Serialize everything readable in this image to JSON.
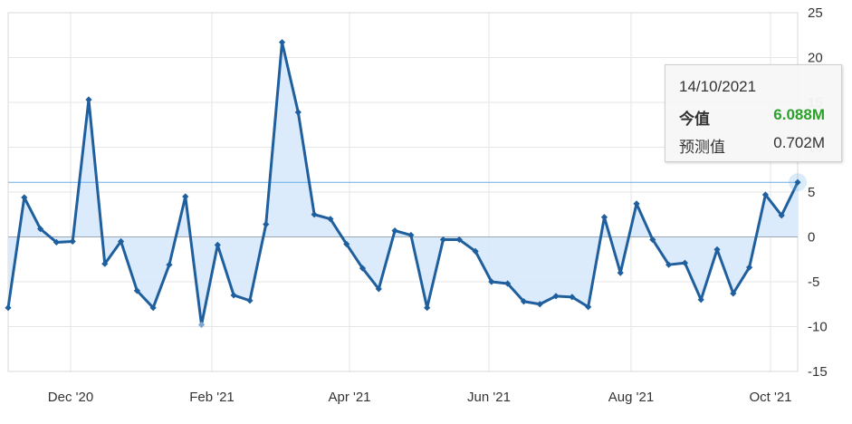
{
  "chart_data": {
    "type": "line",
    "y_axis": {
      "ticks": [
        25,
        20,
        15,
        10,
        5,
        0,
        -5,
        -10,
        -15
      ],
      "ylim": [
        -15,
        25
      ],
      "position": "right"
    },
    "x_axis": {
      "ticks": [
        "Dec '20",
        "Feb '21",
        "Apr '21",
        "Jun '21",
        "Aug '21",
        "Oct '21"
      ]
    },
    "reference_line": 6.088,
    "grid": true,
    "colors": {
      "line": "#1f5f9e",
      "fill": "#d7e9fb",
      "grid": "#e6e6e6",
      "zero": "#9aa7b3",
      "ref": "#6aaee8",
      "actual": "#2ca02c"
    },
    "series": [
      {
        "values": [
          -7.9,
          4.4,
          0.9,
          -0.6,
          -0.5,
          15.3,
          -3.0,
          -0.5,
          -6.0,
          -7.9,
          -3.1,
          4.5,
          -9.8,
          -0.9,
          -6.5,
          -7.1,
          1.4,
          21.7,
          13.9,
          2.5,
          2.0,
          -0.8,
          -3.5,
          -5.8,
          0.7,
          0.2,
          -7.9,
          -0.3,
          -0.3,
          -1.6,
          -5.0,
          -5.2,
          -7.2,
          -7.5,
          -6.6,
          -6.7,
          -7.8,
          2.2,
          -4.0,
          3.7,
          -0.3,
          -3.1,
          -2.9,
          -7.0,
          -1.4,
          -6.3,
          -3.4,
          4.7,
          2.4,
          6.088
        ]
      }
    ]
  },
  "tooltip": {
    "date": "14/10/2021",
    "actual_label": "今值",
    "actual_value": "6.088M",
    "forecast_label": "预测值",
    "forecast_value": "0.702M"
  }
}
